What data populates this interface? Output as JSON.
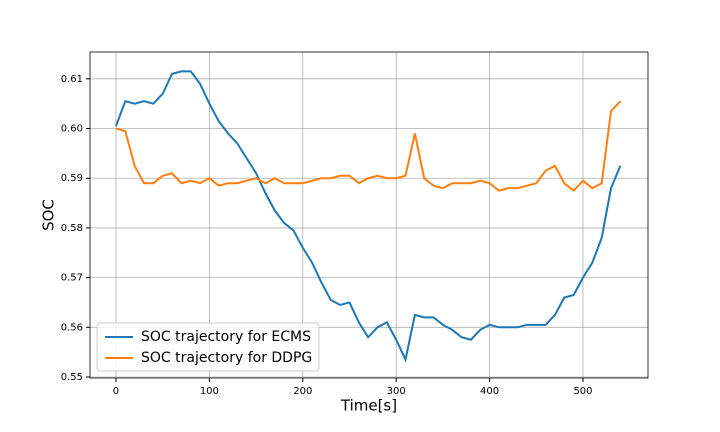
{
  "chart_data": {
    "type": "line",
    "xlabel": "Time[s]",
    "ylabel": "SOC",
    "x": [
      0,
      10,
      20,
      30,
      40,
      50,
      60,
      70,
      80,
      90,
      100,
      110,
      120,
      130,
      140,
      150,
      160,
      170,
      180,
      190,
      200,
      210,
      220,
      230,
      240,
      250,
      260,
      270,
      280,
      290,
      300,
      310,
      320,
      330,
      340,
      350,
      360,
      370,
      380,
      390,
      400,
      410,
      420,
      430,
      440,
      450,
      460,
      470,
      480,
      490,
      500,
      510,
      520,
      530,
      540
    ],
    "series": [
      {
        "name": "SOC trajectory for ECMS",
        "color": "#1f77b4",
        "values": [
          0.6005,
          0.6055,
          0.605,
          0.6055,
          0.605,
          0.607,
          0.611,
          0.6115,
          0.6115,
          0.609,
          0.605,
          0.6015,
          0.599,
          0.597,
          0.594,
          0.591,
          0.587,
          0.5835,
          0.581,
          0.5795,
          0.576,
          0.573,
          0.569,
          0.5655,
          0.5645,
          0.565,
          0.561,
          0.558,
          0.56,
          0.561,
          0.5575,
          0.5535,
          0.5625,
          0.562,
          0.562,
          0.5605,
          0.5595,
          0.558,
          0.5575,
          0.5595,
          0.5605,
          0.56,
          0.56,
          0.56,
          0.5605,
          0.5605,
          0.5605,
          0.5625,
          0.566,
          0.5665,
          0.57,
          0.573,
          0.578,
          0.588,
          0.5925
        ]
      },
      {
        "name": "SOC trajectory for DDPG",
        "color": "#ff7f0e",
        "values": [
          0.6,
          0.5995,
          0.5925,
          0.589,
          0.589,
          0.5905,
          0.591,
          0.589,
          0.5895,
          0.589,
          0.59,
          0.5885,
          0.589,
          0.589,
          0.5895,
          0.59,
          0.589,
          0.59,
          0.589,
          0.589,
          0.589,
          0.5895,
          0.59,
          0.59,
          0.5905,
          0.5905,
          0.589,
          0.59,
          0.5905,
          0.59,
          0.59,
          0.5905,
          0.599,
          0.59,
          0.5885,
          0.588,
          0.589,
          0.589,
          0.589,
          0.5895,
          0.589,
          0.5875,
          0.588,
          0.588,
          0.5885,
          0.589,
          0.5915,
          0.5925,
          0.589,
          0.5875,
          0.5895,
          0.588,
          0.589,
          0.6035,
          0.6055
        ]
      }
    ],
    "xlim": [
      -27.8,
      569.6
    ],
    "xticks": [
      0,
      100,
      200,
      300,
      400,
      500
    ],
    "ylim": [
      0.5498,
      0.6154
    ],
    "yticks": [
      0.55,
      0.56,
      0.57,
      0.58,
      0.59,
      {
        "value": 0.6,
        "label": "0.60"
      },
      0.61
    ],
    "grid": true,
    "legend": "lower left"
  }
}
